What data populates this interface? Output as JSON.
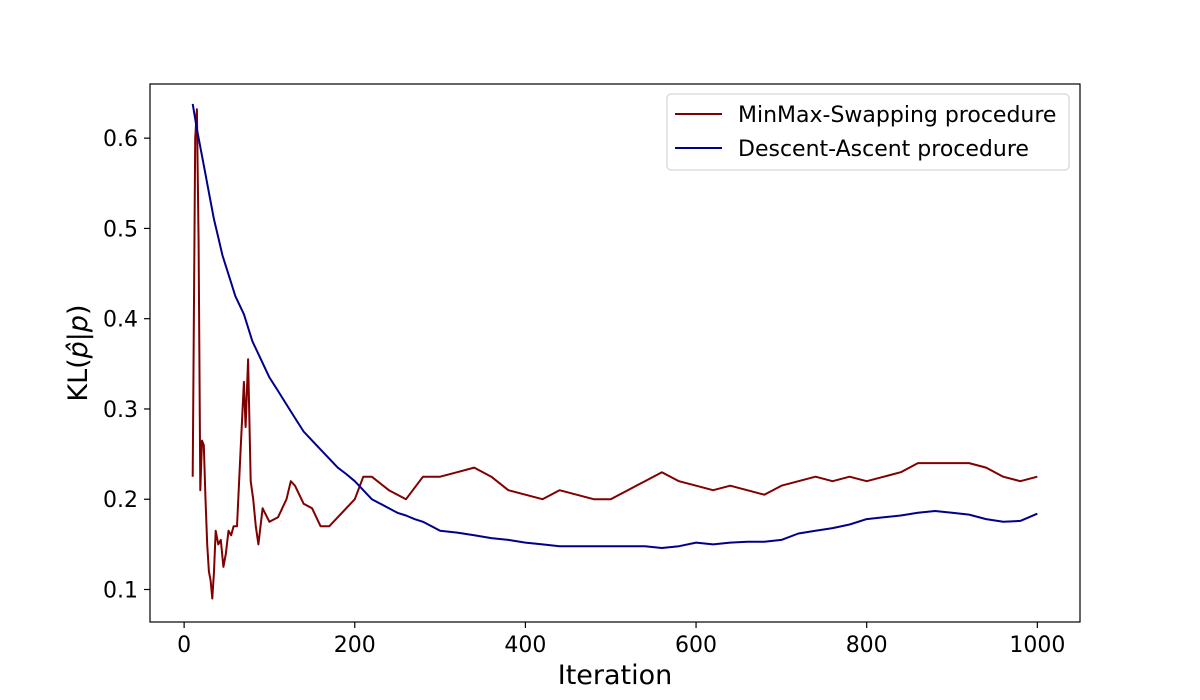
{
  "chart_data": {
    "type": "line",
    "title": "",
    "xlabel": "Iteration",
    "ylabel": "KL(p̂|p)",
    "ylabel_parts": {
      "prefix": "KL(",
      "phat": "p̂",
      "sep": "|",
      "p": "p",
      "suffix": ")"
    },
    "xlim": [
      -40,
      1050
    ],
    "ylim": [
      0.064,
      0.66
    ],
    "xticks": [
      0,
      200,
      400,
      600,
      800,
      1000
    ],
    "yticks": [
      0.1,
      0.2,
      0.3,
      0.4,
      0.5,
      0.6
    ],
    "grid": false,
    "legend_position": "top-right",
    "series": [
      {
        "name": "MinMax-Swapping procedure",
        "color": "#800000",
        "x": [
          10,
          13,
          15,
          17,
          19,
          21,
          23,
          25,
          27,
          29,
          31,
          33,
          35,
          37,
          40,
          43,
          46,
          49,
          52,
          55,
          58,
          62,
          66,
          70,
          72,
          75,
          78,
          81,
          84,
          87,
          92,
          100,
          110,
          120,
          125,
          130,
          140,
          150,
          160,
          170,
          180,
          190,
          200,
          210,
          220,
          240,
          260,
          280,
          300,
          320,
          340,
          360,
          380,
          400,
          420,
          440,
          460,
          480,
          500,
          520,
          540,
          560,
          580,
          600,
          620,
          640,
          660,
          680,
          700,
          720,
          740,
          760,
          780,
          800,
          820,
          840,
          860,
          880,
          900,
          920,
          940,
          960,
          980,
          1000
        ],
        "y": [
          0.225,
          0.6,
          0.632,
          0.485,
          0.21,
          0.265,
          0.26,
          0.2,
          0.15,
          0.12,
          0.11,
          0.09,
          0.12,
          0.165,
          0.15,
          0.155,
          0.125,
          0.14,
          0.165,
          0.16,
          0.17,
          0.17,
          0.25,
          0.33,
          0.28,
          0.355,
          0.22,
          0.2,
          0.17,
          0.15,
          0.19,
          0.175,
          0.18,
          0.2,
          0.22,
          0.215,
          0.195,
          0.19,
          0.17,
          0.17,
          0.18,
          0.19,
          0.2,
          0.225,
          0.225,
          0.21,
          0.2,
          0.225,
          0.225,
          0.23,
          0.235,
          0.225,
          0.21,
          0.205,
          0.2,
          0.21,
          0.205,
          0.2,
          0.2,
          0.21,
          0.22,
          0.23,
          0.22,
          0.215,
          0.21,
          0.215,
          0.21,
          0.205,
          0.215,
          0.22,
          0.225,
          0.22,
          0.225,
          0.22,
          0.225,
          0.23,
          0.24,
          0.24,
          0.24,
          0.24,
          0.235,
          0.225,
          0.22,
          0.225
        ]
      },
      {
        "name": "Descent-Ascent procedure",
        "color": "#00008b",
        "x": [
          10,
          15,
          20,
          25,
          30,
          35,
          40,
          45,
          50,
          55,
          60,
          70,
          80,
          90,
          100,
          110,
          120,
          130,
          140,
          150,
          160,
          170,
          180,
          190,
          200,
          210,
          220,
          230,
          240,
          250,
          260,
          270,
          280,
          290,
          300,
          320,
          340,
          360,
          380,
          400,
          420,
          440,
          460,
          480,
          500,
          520,
          540,
          560,
          580,
          600,
          620,
          640,
          660,
          680,
          700,
          720,
          740,
          760,
          780,
          800,
          820,
          840,
          860,
          880,
          900,
          920,
          940,
          960,
          980,
          1000
        ],
        "y": [
          0.638,
          0.61,
          0.585,
          0.56,
          0.535,
          0.51,
          0.49,
          0.47,
          0.455,
          0.44,
          0.425,
          0.405,
          0.375,
          0.355,
          0.335,
          0.32,
          0.305,
          0.29,
          0.275,
          0.265,
          0.255,
          0.245,
          0.235,
          0.228,
          0.22,
          0.21,
          0.2,
          0.195,
          0.19,
          0.185,
          0.182,
          0.178,
          0.175,
          0.17,
          0.165,
          0.163,
          0.16,
          0.157,
          0.155,
          0.152,
          0.15,
          0.148,
          0.148,
          0.148,
          0.148,
          0.148,
          0.148,
          0.146,
          0.148,
          0.152,
          0.15,
          0.152,
          0.153,
          0.153,
          0.155,
          0.162,
          0.165,
          0.168,
          0.172,
          0.178,
          0.18,
          0.182,
          0.185,
          0.187,
          0.185,
          0.183,
          0.178,
          0.175,
          0.176,
          0.184
        ]
      }
    ]
  }
}
